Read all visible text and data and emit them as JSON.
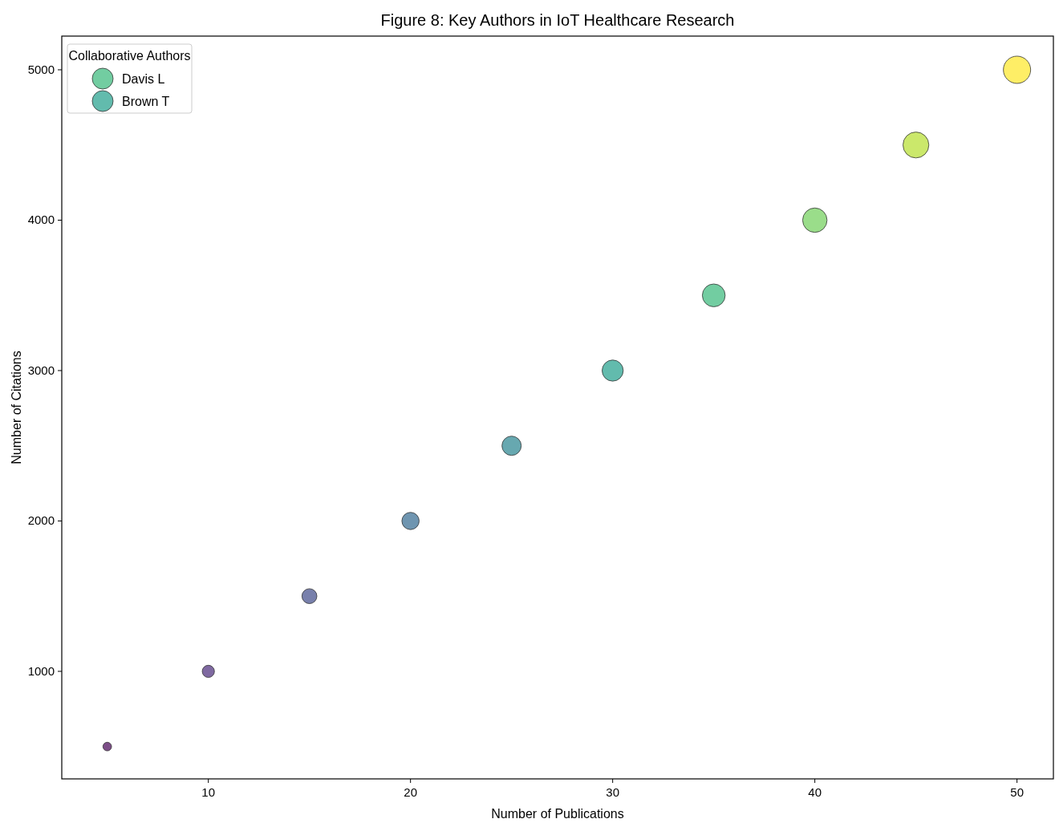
{
  "chart_data": {
    "type": "bubble",
    "title": "Figure 8: Key Authors in IoT Healthcare Research",
    "xlabel": "Number of Publications",
    "ylabel": "Number of Citations",
    "legend_title": "Collaborative Authors",
    "legend": "top left",
    "grid": false,
    "xlim": [
      2.75,
      51.8
    ],
    "ylim": [
      285,
      5224
    ],
    "xticks": [
      10,
      20,
      30,
      40,
      50
    ],
    "yticks": [
      1000,
      2000,
      3000,
      4000,
      5000
    ],
    "series": [
      {
        "x": [
          5,
          10,
          15,
          20,
          25,
          30,
          35,
          40,
          45,
          50
        ],
        "values": [
          500,
          1000,
          1500,
          2000,
          2500,
          3000,
          3500,
          4000,
          4500,
          5000
        ],
        "sizes": [
          0.1,
          0.2,
          0.3,
          0.4,
          0.5,
          0.6,
          0.7,
          0.8,
          0.9,
          1
        ],
        "colors": [
          "#7c4d87",
          "#7f69a1",
          "#7880ac",
          "#6f95b0",
          "#67a8b0",
          "#62bbad",
          "#72cda1",
          "#9add8a",
          "#cbe86b",
          "#feee66"
        ]
      },
      {
        "name": "Davis L",
        "color": "#72cda1"
      },
      {
        "name": "Brown T",
        "color": "#62bbad"
      }
    ]
  }
}
